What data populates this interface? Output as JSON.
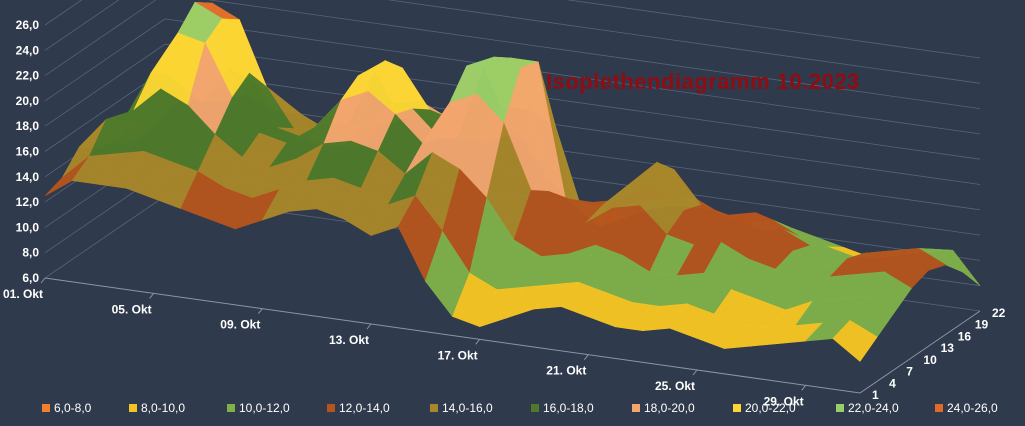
{
  "chart_data": {
    "type": "surface",
    "title": "Isoplethendiagramm 10.2023",
    "y_ticks": [
      "6,0",
      "8,0",
      "10,0",
      "12,0",
      "14,0",
      "16,0",
      "18,0",
      "20,0",
      "22,0",
      "24,0",
      "26,0"
    ],
    "ylim": [
      6,
      26
    ],
    "x_ticks": [
      "01. Okt",
      "05. Okt",
      "09. Okt",
      "13. Okt",
      "17. Okt",
      "21. Okt",
      "25. Okt",
      "29. Okt"
    ],
    "z_ticks": [
      "1",
      "4",
      "7",
      "10",
      "13",
      "16",
      "19",
      "22"
    ],
    "x": [
      1,
      2,
      3,
      4,
      5,
      6,
      7,
      8,
      9,
      10,
      11,
      12,
      13,
      14,
      15,
      16,
      17,
      18,
      19,
      20,
      21,
      22,
      23,
      24,
      25,
      26,
      27,
      28,
      29,
      30,
      31
    ],
    "z": [
      1,
      4,
      7,
      10,
      13,
      16,
      19,
      22
    ],
    "values": [
      [
        12.5,
        13.0,
        14.5,
        13.5,
        13.0,
        12.0,
        12.5,
        13.0
      ],
      [
        14.0,
        15.0,
        17.0,
        16.0,
        15.0,
        14.0,
        15.0,
        14.0
      ],
      [
        14.0,
        15.5,
        18.0,
        20.0,
        19.0,
        17.0,
        15.0,
        14.0
      ],
      [
        14.0,
        16.0,
        20.0,
        23.5,
        25.0,
        24.0,
        18.0,
        15.0
      ],
      [
        13.5,
        15.5,
        19.0,
        23.0,
        24.0,
        23.0,
        17.0,
        14.0
      ],
      [
        13.0,
        15.0,
        17.0,
        19.0,
        20.0,
        18.0,
        16.0,
        14.0
      ],
      [
        12.5,
        14.0,
        15.5,
        16.5,
        16.0,
        15.0,
        14.0,
        13.0
      ],
      [
        12.0,
        13.5,
        15.0,
        16.0,
        15.5,
        14.0,
        13.0,
        12.0
      ],
      [
        13.0,
        14.5,
        16.0,
        17.5,
        17.0,
        16.0,
        15.0,
        14.0
      ],
      [
        14.0,
        15.5,
        17.5,
        20.0,
        21.0,
        20.5,
        17.0,
        15.0
      ],
      [
        14.5,
        16.0,
        18.0,
        21.0,
        22.5,
        21.0,
        17.5,
        15.0
      ],
      [
        14.0,
        15.5,
        17.5,
        19.5,
        19.0,
        18.0,
        16.5,
        15.0
      ],
      [
        13.0,
        14.5,
        16.0,
        17.5,
        17.0,
        16.0,
        15.0,
        14.0
      ],
      [
        14.0,
        15.5,
        18.0,
        21.0,
        23.0,
        22.0,
        18.0,
        15.0
      ],
      [
        10.0,
        13.0,
        17.0,
        22.0,
        24.0,
        23.0,
        18.0,
        12.0
      ],
      [
        7.5,
        10.0,
        15.0,
        20.0,
        23.5,
        23.0,
        17.0,
        10.0
      ],
      [
        7.0,
        9.0,
        12.0,
        15.0,
        14.0,
        12.5,
        10.5,
        8.5
      ],
      [
        8.0,
        9.5,
        11.0,
        13.0,
        13.5,
        12.5,
        11.0,
        9.5
      ],
      [
        9.0,
        10.0,
        11.5,
        13.0,
        13.5,
        13.0,
        12.0,
        10.5
      ],
      [
        9.5,
        10.5,
        12.5,
        14.5,
        15.5,
        14.5,
        12.5,
        11.0
      ],
      [
        9.0,
        10.0,
        12.0,
        15.0,
        17.5,
        16.0,
        13.0,
        11.0
      ],
      [
        8.5,
        9.5,
        11.0,
        13.0,
        14.0,
        13.5,
        12.0,
        10.5
      ],
      [
        8.5,
        9.5,
        11.0,
        12.5,
        13.5,
        13.0,
        11.5,
        10.0
      ],
      [
        9.0,
        10.0,
        11.5,
        13.0,
        14.0,
        13.5,
        12.0,
        10.5
      ],
      [
        8.5,
        9.5,
        10.5,
        12.0,
        13.0,
        12.5,
        11.0,
        10.0
      ],
      [
        8.0,
        9.0,
        10.0,
        11.5,
        12.0,
        11.5,
        10.5,
        9.5
      ],
      [
        8.5,
        9.0,
        9.5,
        10.5,
        11.0,
        10.5,
        10.0,
        9.0
      ],
      [
        9.0,
        9.5,
        10.5,
        11.5,
        12.0,
        11.5,
        10.5,
        9.5
      ],
      [
        9.5,
        10.0,
        11.0,
        12.0,
        12.5,
        12.0,
        11.0,
        10.0
      ],
      [
        10.0,
        10.5,
        11.5,
        12.5,
        13.0,
        12.5,
        11.5,
        10.5
      ],
      [
        8.5,
        9.5,
        10.5,
        11.5,
        12.0,
        11.5,
        10.0,
        8.0
      ]
    ],
    "legend": [
      {
        "label": "6,0-8,0",
        "color": "#f07f30"
      },
      {
        "label": "8,0-10,0",
        "color": "#f5c423"
      },
      {
        "label": "10,0-12,0",
        "color": "#7fb04a"
      },
      {
        "label": "12,0-14,0",
        "color": "#b4541e"
      },
      {
        "label": "14,0-16,0",
        "color": "#a8862a"
      },
      {
        "label": "16,0-18,0",
        "color": "#4e7a2a"
      },
      {
        "label": "18,0-20,0",
        "color": "#f2a56d"
      },
      {
        "label": "20,0-22,0",
        "color": "#fbd634"
      },
      {
        "label": "22,0-24,0",
        "color": "#9acd68"
      },
      {
        "label": "24,0-26,0",
        "color": "#e06a2c"
      }
    ],
    "legend_position": "bottom",
    "grid": true,
    "background": "#2f3a4c"
  }
}
